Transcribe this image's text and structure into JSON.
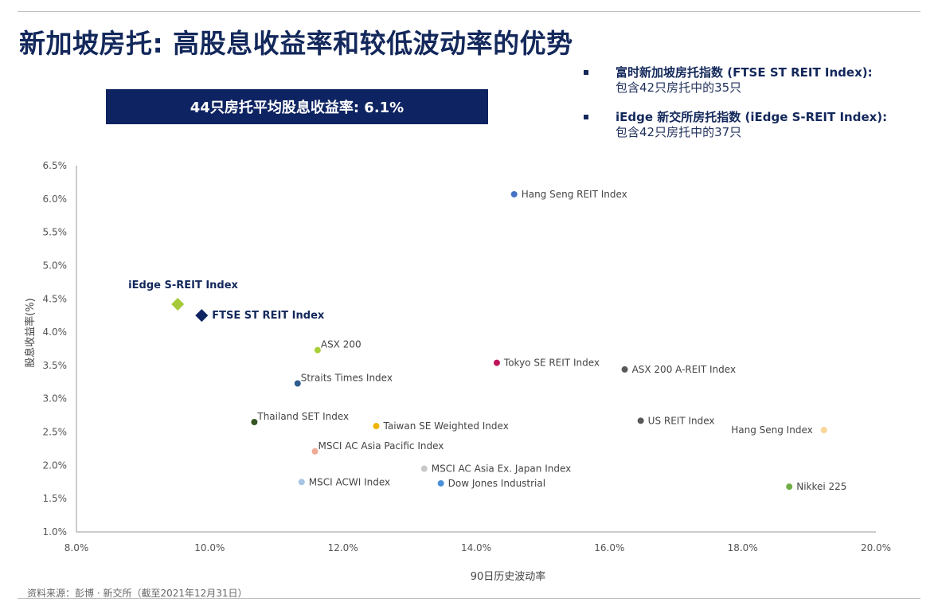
{
  "header": {
    "title": "新加坡房托: 高股息收益率和较低波动率的优势",
    "banner": "44只房托平均股息收益率: 6.1%"
  },
  "bullets": [
    {
      "head": "富时新加坡房托指数 (FTSE ST REIT Index):",
      "sub": "包含42只房托中的35只"
    },
    {
      "head": "iEdge 新交所房托指数 (iEdge S-REIT Index):",
      "sub": "包含42只房托中的37只"
    }
  ],
  "footer": {
    "source": "资料来源：彭博 · 新交所（截至2021年12月31日）"
  },
  "colors": {
    "navy": "#13285b",
    "banner": "#0e2361",
    "axis": "#9a9a9a"
  },
  "chart_data": {
    "type": "scatter",
    "xlabel": "90日历史波动率",
    "ylabel": "股息收益率(%)",
    "xlim": [
      8.0,
      20.0
    ],
    "ylim": [
      1.0,
      6.5
    ],
    "x_ticks": [
      8.0,
      10.0,
      12.0,
      14.0,
      16.0,
      18.0,
      20.0
    ],
    "x_tick_labels": [
      "8.0%",
      "10.0%",
      "12.0%",
      "14.0%",
      "16.0%",
      "18.0%",
      "20.0%"
    ],
    "y_ticks": [
      1.0,
      1.5,
      2.0,
      2.5,
      3.0,
      3.5,
      4.0,
      4.5,
      5.0,
      5.5,
      6.0,
      6.5
    ],
    "y_tick_labels": [
      "1.0%",
      "1.5%",
      "2.0%",
      "2.5%",
      "3.0%",
      "3.5%",
      "4.0%",
      "4.5%",
      "5.0%",
      "5.5%",
      "6.0%",
      "6.5%"
    ],
    "points": [
      {
        "name": "iEdge S-REIT  Index",
        "x": 9.52,
        "y": 4.42,
        "color": "#a6c93a",
        "marker": "diamond",
        "highlight": true,
        "label_pos": "above"
      },
      {
        "name": "FTSE  ST REIT  Index",
        "x": 9.88,
        "y": 4.25,
        "color": "#0e2361",
        "marker": "diamond",
        "highlight": true,
        "label_pos": "right"
      },
      {
        "name": "Hang Seng REIT Index",
        "x": 14.57,
        "y": 6.07,
        "color": "#4472c4",
        "marker": "circle",
        "label_pos": "right"
      },
      {
        "name": "ASX 200",
        "x": 11.62,
        "y": 3.73,
        "color": "#a9cf38",
        "marker": "circle",
        "label_pos": "right-up"
      },
      {
        "name": "Straits Times Index",
        "x": 11.32,
        "y": 3.23,
        "color": "#2e5e8e",
        "marker": "circle",
        "label_pos": "right-up"
      },
      {
        "name": "Tokyo SE REIT Index",
        "x": 14.31,
        "y": 3.54,
        "color": "#c0145a",
        "marker": "circle",
        "label_pos": "right"
      },
      {
        "name": "ASX 200 A-REIT Index",
        "x": 16.23,
        "y": 3.44,
        "color": "#595959",
        "marker": "circle",
        "label_pos": "right"
      },
      {
        "name": "Thailand SET Index",
        "x": 10.67,
        "y": 2.65,
        "color": "#375623",
        "marker": "circle",
        "label_pos": "right-up"
      },
      {
        "name": "Taiwan SE Weighted Index",
        "x": 12.5,
        "y": 2.59,
        "color": "#f0b400",
        "marker": "circle",
        "label_pos": "right"
      },
      {
        "name": "US REIT Index",
        "x": 16.47,
        "y": 2.67,
        "color": "#595959",
        "marker": "circle",
        "label_pos": "right"
      },
      {
        "name": "Hang Seng Index",
        "x": 19.22,
        "y": 2.53,
        "color": "#f9d597",
        "marker": "circle",
        "label_pos": "left"
      },
      {
        "name": "MSCI AC Asia Pacific Index",
        "x": 11.58,
        "y": 2.21,
        "color": "#f0aa96",
        "marker": "circle",
        "label_pos": "right-up"
      },
      {
        "name": "MSCI AC Asia Ex. Japan Index",
        "x": 13.22,
        "y": 1.95,
        "color": "#c8c8c8",
        "marker": "circle",
        "label_pos": "right"
      },
      {
        "name": "MSCI ACWI Index",
        "x": 11.38,
        "y": 1.75,
        "color": "#a7c4e3",
        "marker": "circle",
        "label_pos": "right"
      },
      {
        "name": "Dow Jones Industrial",
        "x": 13.47,
        "y": 1.73,
        "color": "#4a90d9",
        "marker": "circle",
        "label_pos": "right"
      },
      {
        "name": "Nikkei 225",
        "x": 18.7,
        "y": 1.68,
        "color": "#70ad47",
        "marker": "circle",
        "label_pos": "right"
      }
    ]
  }
}
